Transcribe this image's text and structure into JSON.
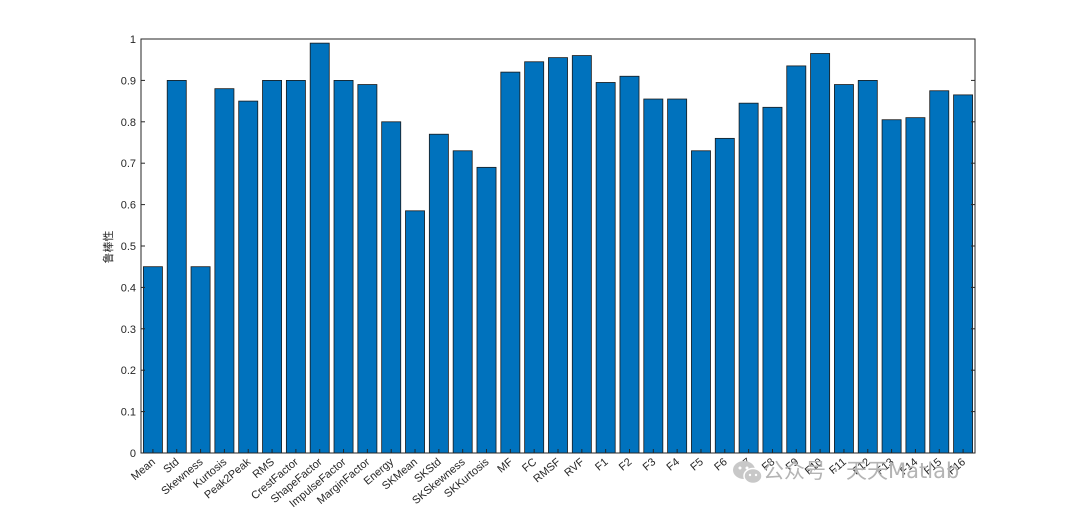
{
  "chart_data": {
    "type": "bar",
    "title": "",
    "xlabel": "",
    "ylabel": "鲁棒性",
    "ylim": [
      0,
      1
    ],
    "yticks": [
      0,
      0.1,
      0.2,
      0.3,
      0.4,
      0.5,
      0.6,
      0.7,
      0.8,
      0.9,
      1
    ],
    "grid": false,
    "bar_color": "#0072BD",
    "categories": [
      "Mean",
      "Std",
      "Skewness",
      "Kurtosis",
      "Peak2Peak",
      "RMS",
      "CrestFactor",
      "ShapeFactor",
      "ImpulseFactor",
      "MarginFactor",
      "Energy",
      "SKMean",
      "SKStd",
      "SKSkewness",
      "SKKurtosis",
      "MF",
      "FC",
      "RMSF",
      "RVF",
      "F1",
      "F2",
      "F3",
      "F4",
      "F5",
      "F6",
      "F7",
      "F8",
      "F9",
      "F10",
      "F11",
      "F12",
      "F13",
      "F14",
      "F15",
      "F16"
    ],
    "values": [
      0.45,
      0.9,
      0.45,
      0.88,
      0.85,
      0.9,
      0.9,
      0.99,
      0.9,
      0.89,
      0.8,
      0.585,
      0.77,
      0.73,
      0.69,
      0.92,
      0.945,
      0.955,
      0.96,
      0.895,
      0.91,
      0.855,
      0.855,
      0.73,
      0.76,
      0.845,
      0.835,
      0.935,
      0.965,
      0.89,
      0.9,
      0.805,
      0.81,
      0.875,
      0.865
    ]
  },
  "watermark": {
    "text": "公众号 · 天天Matlab",
    "icon": "wechat-icon"
  }
}
